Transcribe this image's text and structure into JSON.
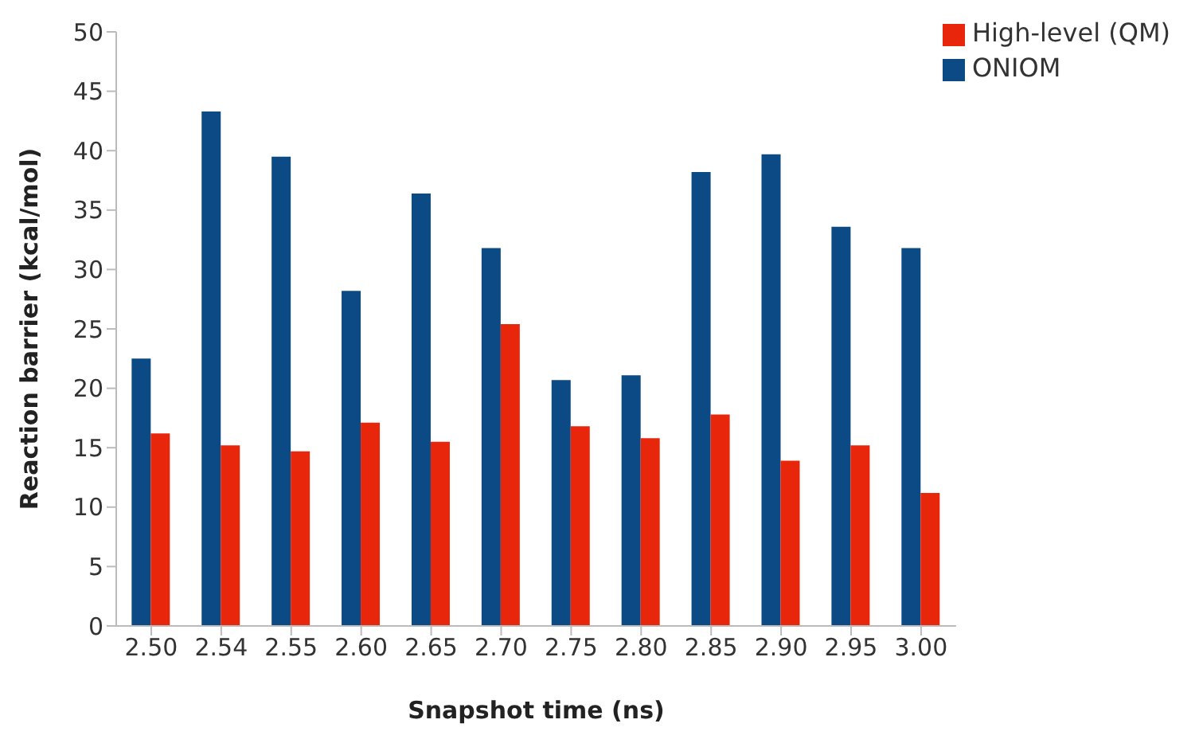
{
  "chart_data": {
    "type": "bar",
    "xlabel": "Snapshot time (ns)",
    "ylabel": "Reaction barrier (kcal/mol)",
    "categories": [
      "2.50",
      "2.54",
      "2.55",
      "2.60",
      "2.65",
      "2.70",
      "2.75",
      "2.80",
      "2.85",
      "2.90",
      "2.95",
      "3.00"
    ],
    "series": [
      {
        "name": "ONIOM",
        "color": "#0b4a85",
        "values": [
          22.5,
          43.3,
          39.5,
          28.2,
          36.4,
          31.8,
          20.7,
          21.1,
          38.2,
          39.7,
          33.6,
          31.8
        ]
      },
      {
        "name": "High-level (QM)",
        "color": "#e8260c",
        "values": [
          16.2,
          15.2,
          14.7,
          17.1,
          15.5,
          25.4,
          16.8,
          15.8,
          17.8,
          13.9,
          15.2,
          11.2
        ]
      }
    ],
    "ylim": [
      0,
      50
    ],
    "yticks": [
      0,
      5,
      10,
      15,
      20,
      25,
      30,
      35,
      40,
      45,
      50
    ],
    "grid": false,
    "legend": "top right"
  }
}
